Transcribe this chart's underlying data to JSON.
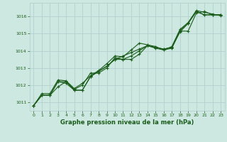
{
  "xlabel": "Graphe pression niveau de la mer (hPa)",
  "bg_color": "#cce8e0",
  "grid_color": "#b0cccc",
  "line_color": "#1a5c1a",
  "ylim": [
    1010.5,
    1016.8
  ],
  "xlim": [
    -0.5,
    23.5
  ],
  "yticks": [
    1011,
    1012,
    1013,
    1014,
    1015,
    1016
  ],
  "xticks": [
    0,
    1,
    2,
    3,
    4,
    5,
    6,
    7,
    8,
    9,
    10,
    11,
    12,
    13,
    14,
    15,
    16,
    17,
    18,
    19,
    20,
    21,
    22,
    23
  ],
  "series": [
    [
      1010.8,
      1011.4,
      1011.4,
      1011.9,
      1012.2,
      1011.7,
      1011.7,
      1012.5,
      1012.8,
      1013.1,
      1013.5,
      1013.5,
      1013.7,
      1014.0,
      1014.3,
      1014.2,
      1014.1,
      1014.2,
      1015.1,
      1015.6,
      1016.3,
      1016.1,
      1016.1,
      1016.1
    ],
    [
      1010.8,
      1011.4,
      1011.4,
      1012.2,
      1012.1,
      1011.7,
      1011.7,
      1012.5,
      1012.8,
      1013.1,
      1013.5,
      1013.7,
      1013.9,
      1014.1,
      1014.3,
      1014.2,
      1014.1,
      1014.2,
      1015.2,
      1015.6,
      1016.3,
      1016.1,
      1016.1,
      1016.1
    ],
    [
      1010.8,
      1011.4,
      1011.4,
      1012.2,
      1012.2,
      1011.75,
      1012.0,
      1012.7,
      1012.7,
      1013.0,
      1013.6,
      1013.5,
      1013.5,
      1013.8,
      1014.3,
      1014.15,
      1014.05,
      1014.15,
      1015.15,
      1015.15,
      1016.2,
      1016.3,
      1016.1,
      1016.1
    ],
    [
      1010.8,
      1011.5,
      1011.5,
      1012.3,
      1012.25,
      1011.8,
      1012.1,
      1012.55,
      1012.85,
      1013.25,
      1013.7,
      1013.65,
      1014.05,
      1014.45,
      1014.35,
      1014.25,
      1014.05,
      1014.25,
      1015.25,
      1015.65,
      1016.35,
      1016.25,
      1016.15,
      1016.05
    ]
  ]
}
